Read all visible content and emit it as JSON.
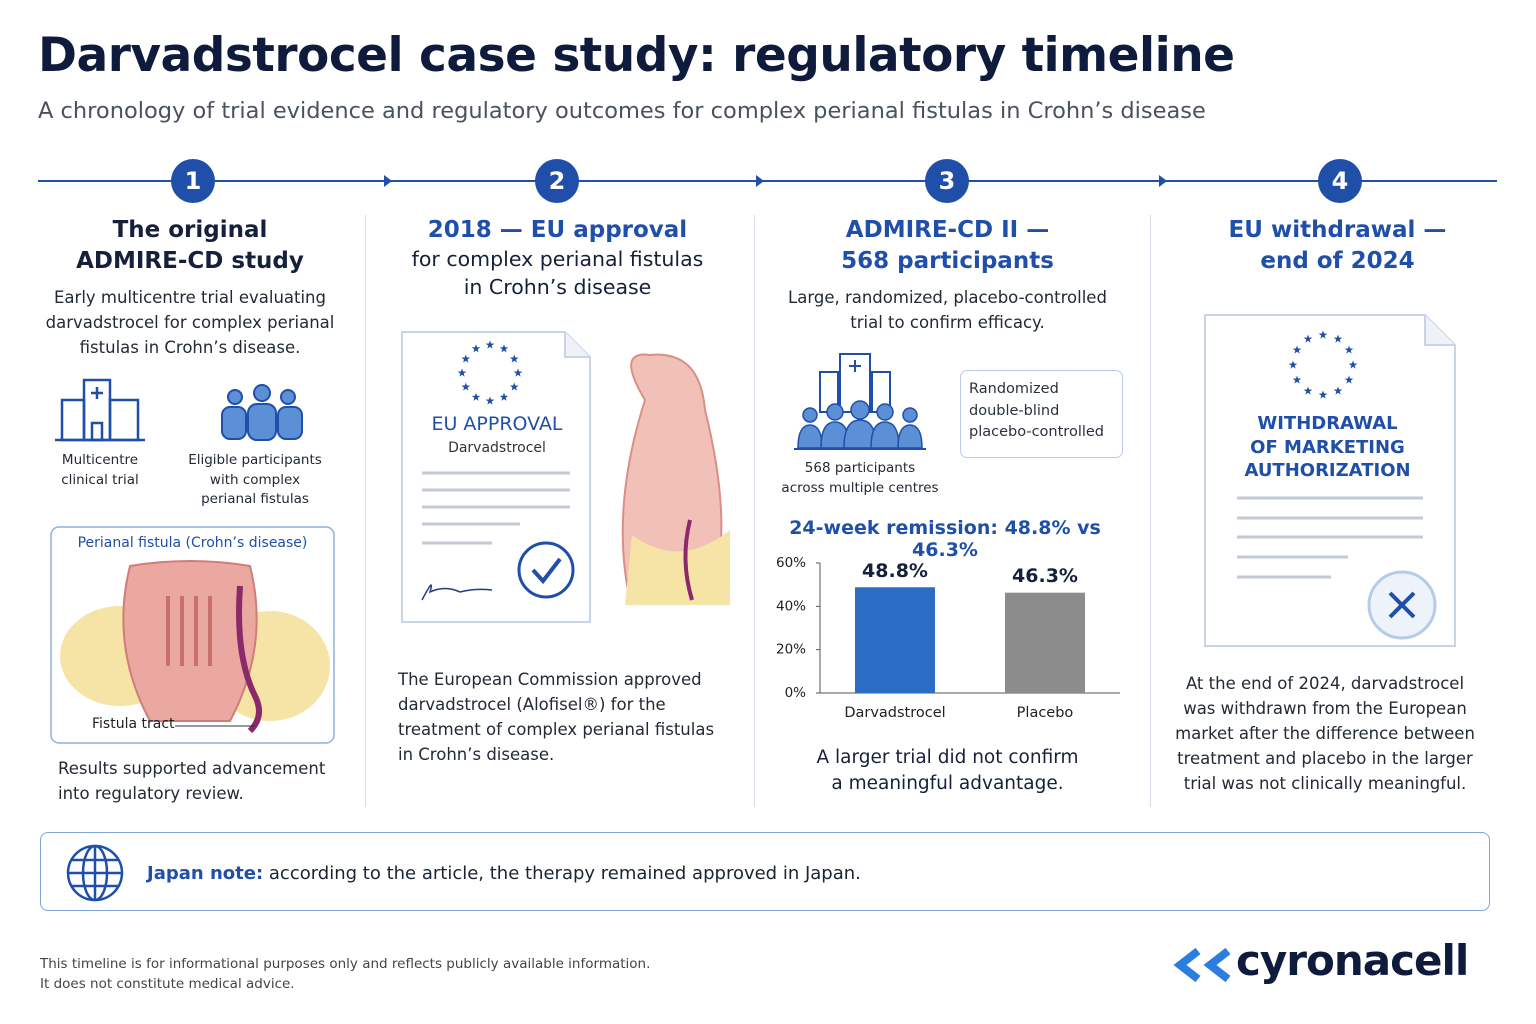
{
  "header": {
    "title": "Darvadstrocel case study: regulatory timeline",
    "subtitle": "A chronology of trial evidence and regulatory outcomes for complex perianal fistulas in Crohn’s disease"
  },
  "steps": [
    {
      "number": 1,
      "title": [
        "The original",
        "ADMIRE-CD study"
      ],
      "description": "Early multicentre trial evaluating darvadstrocel for complex perianal fistulas in Crohn’s disease.",
      "icons": [
        "Multicentre clinical trial",
        "Eligible participants with complex perianal fistulas"
      ],
      "illustration": {
        "title": "Perianal fistula (Crohn’s disease)",
        "label": "Fistula tract"
      },
      "footer": "Results supported advancement into regulatory review."
    },
    {
      "number": 2,
      "title": [
        "2018 — EU approval"
      ],
      "subtitle": [
        "for complex perianal fistulas",
        "in Crohn’s disease"
      ],
      "document": {
        "heading": "EU APPROVAL",
        "name": "Darvadstrocel"
      },
      "description": "The European Commission approved darvadstrocel (Alofisel®) for the treatment of complex perianal fistulas in Crohn’s disease."
    },
    {
      "number": 3,
      "title": [
        "ADMIRE-CD II —",
        "568 participants"
      ],
      "description": "Large, randomized, placebo-controlled trial to confirm efficacy.",
      "icon_caption": [
        "568 participants",
        "across multiple centres"
      ],
      "design": [
        "Randomized",
        "double-blind",
        "placebo-controlled"
      ],
      "conclusion": [
        "A larger trial did not confirm",
        "a meaningful advantage."
      ]
    },
    {
      "number": 4,
      "title": [
        "EU withdrawal —",
        "end of 2024"
      ],
      "document": {
        "heading": [
          "WITHDRAWAL",
          "OF MARKETING",
          "AUTHORIZATION"
        ]
      },
      "description": "At the end of 2024, darvadstrocel was withdrawn from the European market after the difference between treatment and placebo in the larger trial was not clinically meaningful."
    }
  ],
  "chart_data": {
    "type": "bar",
    "title": "24-week remission: 48.8% vs 46.3%",
    "categories": [
      "Darvadstrocel",
      "Placebo"
    ],
    "values": [
      48.8,
      46.3
    ],
    "value_labels": [
      "48.8%",
      "46.3%"
    ],
    "colors": [
      "#2b6cc4",
      "#8c8c8c"
    ],
    "ylim": [
      0,
      60
    ],
    "yticks": [
      {
        "value": 0,
        "label": "0%"
      },
      {
        "value": 20,
        "label": "20%"
      },
      {
        "value": 40,
        "label": "40%"
      },
      {
        "value": 60,
        "label": "60%"
      }
    ],
    "grid": false
  },
  "note": {
    "label": "Japan note:",
    "text": "according to the article, the therapy remained approved in Japan."
  },
  "disclaimer": [
    "This timeline is for informational purposes only and reflects publicly available information.",
    "It does not constitute medical advice."
  ],
  "logo": "cyronacell"
}
